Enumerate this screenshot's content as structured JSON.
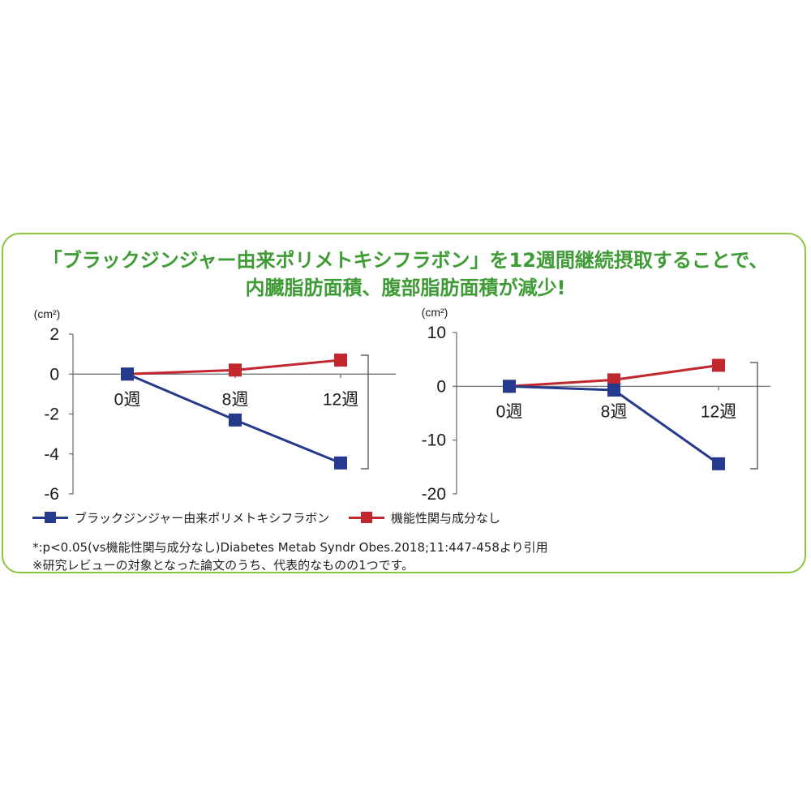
{
  "headline": {
    "line1": "「ブラックジンジャー由来ポリメトキシフラボン」を12週間継続摂取することで、",
    "line2": "内臓脂肪面積、腹部脂肪面積が減少!"
  },
  "colors": {
    "series_blue": "#253a8c",
    "series_red": "#c1272d",
    "frame": "#8cc63f",
    "headline": "#3f9b35"
  },
  "chart_data": [
    {
      "type": "line",
      "unit_label": "(cm²)",
      "categories": [
        "0週",
        "8週",
        "12週"
      ],
      "ylim": [
        -6,
        2
      ],
      "yticks": [
        2,
        0,
        -2,
        -4,
        -6
      ],
      "series": [
        {
          "name": "ブラックジンジャー由来ポリメトキシフラボン",
          "color": "#253a8c",
          "values": [
            0,
            -2.3,
            -4.45
          ]
        },
        {
          "name": "機能性関与成分なし",
          "color": "#c1272d",
          "values": [
            0,
            0.2,
            0.7
          ]
        }
      ]
    },
    {
      "type": "line",
      "unit_label": "(cm²)",
      "categories": [
        "0週",
        "8週",
        "12週"
      ],
      "ylim": [
        -20,
        10
      ],
      "yticks": [
        10,
        0,
        -10,
        -20
      ],
      "series": [
        {
          "name": "ブラックジンジャー由来ポリメトキシフラボン",
          "color": "#253a8c",
          "values": [
            0,
            -0.7,
            -14.4
          ]
        },
        {
          "name": "機能性関与成分なし",
          "color": "#c1272d",
          "values": [
            0,
            1.2,
            3.9
          ]
        }
      ]
    }
  ],
  "legend": {
    "blue_label": "ブラックジンジャー由来ポリメトキシフラボン",
    "red_label": "機能性関与成分なし"
  },
  "notes": {
    "line1": "*:p<0.05(vs機能性関与成分なし)Diabetes Metab Syndr Obes.2018;11:447-458より引用",
    "line2": "※研究レビューの対象となった論文のうち、代表的なものの1つです。"
  }
}
